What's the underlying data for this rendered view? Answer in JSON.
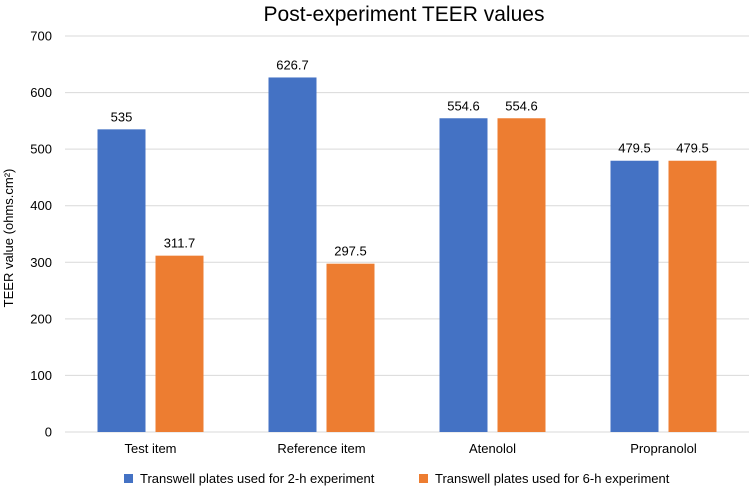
{
  "chart_data": {
    "type": "bar",
    "title": "Post-experiment TEER values",
    "xlabel": "",
    "ylabel": "TEER value (ohms.cm²)",
    "ylim": [
      0,
      700
    ],
    "yticks": [
      "0",
      "100",
      "200",
      "300",
      "400",
      "500",
      "600",
      "700"
    ],
    "grid": true,
    "legend_position": "bottom",
    "categories": [
      "Test item",
      "Reference item",
      "Atenolol",
      "Propranolol"
    ],
    "series": [
      {
        "name": "Transwell plates used for 2-h experiment",
        "color": "#4472c4",
        "values": [
          535,
          626.7,
          554.6,
          479.5
        ],
        "labels": [
          "535",
          "626.7",
          "554.6",
          "479.5"
        ]
      },
      {
        "name": "Transwell plates used for 6-h experiment",
        "color": "#ed7d31",
        "values": [
          311.7,
          297.5,
          554.6,
          479.5
        ],
        "labels": [
          "311.7",
          "297.5",
          "554.6",
          "479.5"
        ]
      }
    ]
  }
}
